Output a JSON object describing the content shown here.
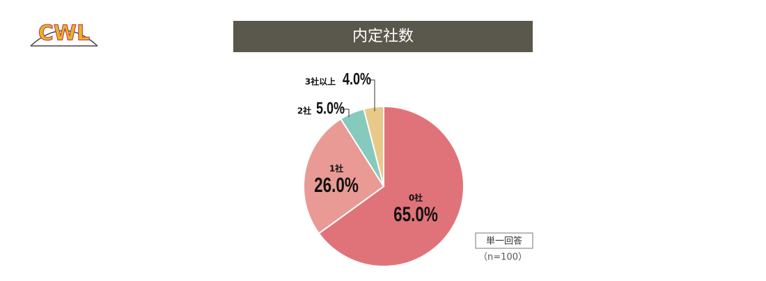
{
  "logo": "CWL",
  "chart_data": {
    "type": "pie",
    "title": "内定社数",
    "categories": [
      "0社",
      "1社",
      "2社",
      "3社以上"
    ],
    "values": [
      65.0,
      26.0,
      5.0,
      4.0
    ],
    "value_labels": [
      "65.0%",
      "26.0%",
      "5.0%",
      "4.0%"
    ],
    "colors": [
      "#e0737a",
      "#e99a94",
      "#86c9bd",
      "#e8c98a"
    ],
    "note": "単一回答",
    "sample": "（n=100）"
  }
}
